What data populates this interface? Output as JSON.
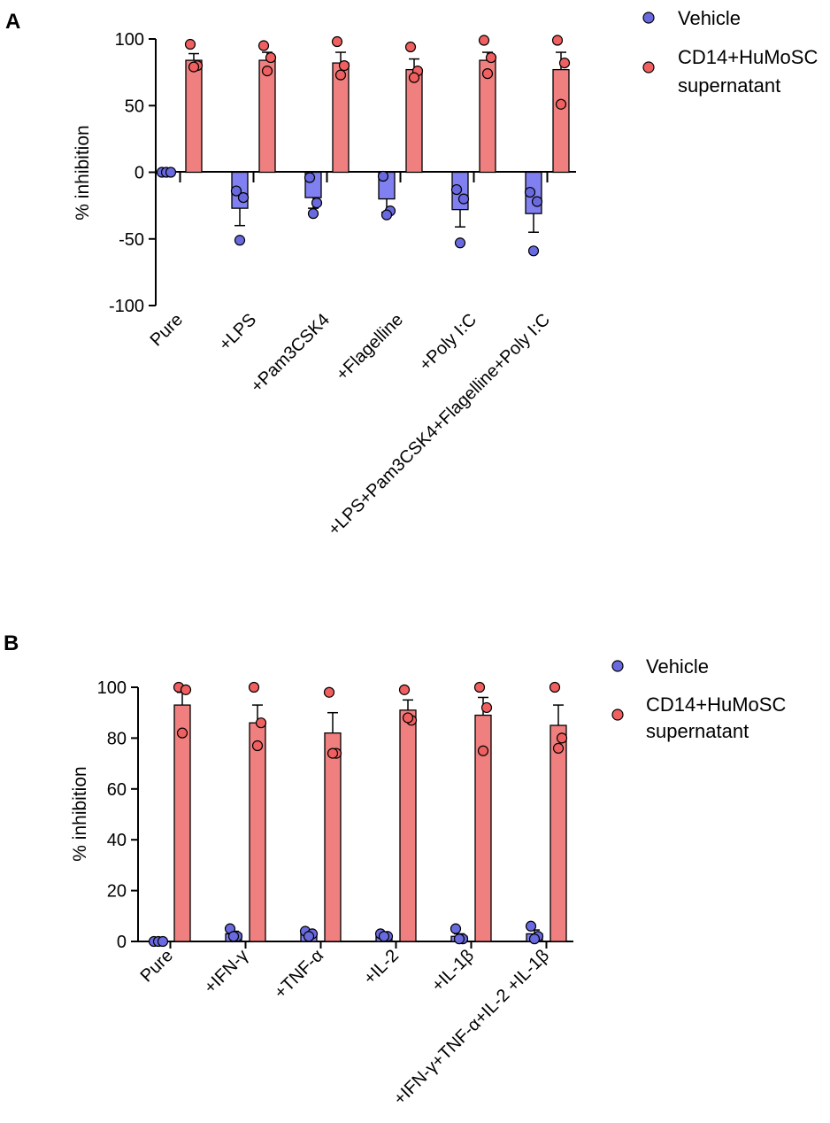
{
  "figure": {
    "panels": [
      "A",
      "B"
    ]
  },
  "colors": {
    "vehicle_bar": "#8080f0",
    "vehicle_dot": "#6a6ae0",
    "treated_bar": "#f08080",
    "treated_dot": "#f06060",
    "outline": "#000000"
  },
  "chart_data": [
    {
      "panel": "A",
      "type": "bar",
      "ylabel": "% inhibition",
      "ylim": [
        -100,
        100
      ],
      "yticks": [
        100,
        50,
        0,
        -50,
        -100
      ],
      "categories": [
        "Pure",
        "+LPS",
        "+Pam3CSK4",
        "+Flagelline",
        "+Poly I:C",
        "+LPS+Pam3CSK4+Flagelline+Poly I:C"
      ],
      "legend": [
        "Vehicle",
        "CD14+HuMoSC",
        "supernatant"
      ],
      "series": [
        {
          "name": "Vehicle",
          "values": [
            0,
            -27,
            -19,
            -20,
            -28,
            -31
          ],
          "errors": [
            0,
            13,
            8,
            10,
            13,
            14
          ],
          "points": [
            [
              0,
              0,
              0
            ],
            [
              -14,
              -19,
              -51
            ],
            [
              -4,
              -23,
              -31
            ],
            [
              -3,
              -29,
              -32
            ],
            [
              -13,
              -20,
              -53
            ],
            [
              -15,
              -22,
              -59
            ]
          ]
        },
        {
          "name": "CD14+HuMoSC supernatant",
          "values": [
            84,
            84,
            82,
            77,
            84,
            77
          ],
          "errors": [
            5,
            6,
            8,
            8,
            6,
            13
          ],
          "points": [
            [
              96,
              80,
              79
            ],
            [
              95,
              86,
              76
            ],
            [
              98,
              80,
              73
            ],
            [
              94,
              76,
              71
            ],
            [
              99,
              86,
              74
            ],
            [
              99,
              82,
              51
            ]
          ]
        }
      ]
    },
    {
      "panel": "B",
      "type": "bar",
      "ylabel": "% inhibition",
      "ylim": [
        0,
        100
      ],
      "yticks": [
        100,
        80,
        60,
        40,
        20,
        0
      ],
      "categories": [
        "Pure",
        "+IFN-γ",
        "+TNF-α",
        "+IL-2",
        "+IL-1β",
        "+IFN-γ+TNF-α+IL-2 +IL-1β"
      ],
      "legend": [
        "Vehicle",
        "CD14+HuMoSC",
        "supernatant"
      ],
      "series": [
        {
          "name": "Vehicle",
          "values": [
            0,
            3,
            3,
            2,
            2,
            3
          ],
          "errors": [
            0,
            1,
            1,
            0.5,
            1,
            1.5
          ],
          "points": [
            [
              0,
              0,
              0
            ],
            [
              5,
              2,
              2
            ],
            [
              4,
              3,
              2
            ],
            [
              3,
              2,
              2
            ],
            [
              5,
              1,
              1
            ],
            [
              6,
              2,
              1
            ]
          ]
        },
        {
          "name": "CD14+HuMoSC supernatant",
          "values": [
            93,
            86,
            82,
            91,
            89,
            85
          ],
          "errors": [
            5,
            7,
            8,
            4,
            7,
            8
          ],
          "points": [
            [
              100,
              99,
              82
            ],
            [
              100,
              86,
              77
            ],
            [
              98,
              74,
              74
            ],
            [
              99,
              87,
              88
            ],
            [
              100,
              92,
              75
            ],
            [
              100,
              80,
              76
            ]
          ]
        }
      ]
    }
  ]
}
